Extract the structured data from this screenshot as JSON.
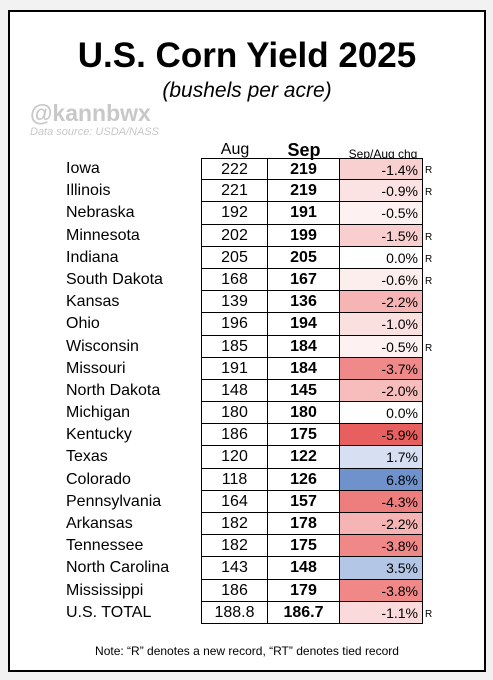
{
  "title": "U.S. Corn Yield 2025",
  "subtitle": "(bushels per acre)",
  "watermark": "@kannbwx",
  "source": "Data source: USDA/NASS",
  "headers": {
    "aug": "Aug",
    "sep": "Sep",
    "chg": "Sep/Aug chg"
  },
  "rows": [
    {
      "state": "Iowa",
      "aug": "222",
      "sep": "219",
      "chg": "-1.4%",
      "record": "R",
      "color": "#f9d0d0"
    },
    {
      "state": "Illinois",
      "aug": "221",
      "sep": "219",
      "chg": "-0.9%",
      "record": "R",
      "color": "#fbe3e3"
    },
    {
      "state": "Nebraska",
      "aug": "192",
      "sep": "191",
      "chg": "-0.5%",
      "record": "",
      "color": "#fdf1f1"
    },
    {
      "state": "Minnesota",
      "aug": "202",
      "sep": "199",
      "chg": "-1.5%",
      "record": "R",
      "color": "#f9cece"
    },
    {
      "state": "Indiana",
      "aug": "205",
      "sep": "205",
      "chg": "0.0%",
      "record": "R",
      "color": "#ffffff"
    },
    {
      "state": "South Dakota",
      "aug": "168",
      "sep": "167",
      "chg": "-0.6%",
      "record": "R",
      "color": "#fdeeee"
    },
    {
      "state": "Kansas",
      "aug": "139",
      "sep": "136",
      "chg": "-2.2%",
      "record": "",
      "color": "#f6b4b4"
    },
    {
      "state": "Ohio",
      "aug": "196",
      "sep": "194",
      "chg": "-1.0%",
      "record": "",
      "color": "#fbe0e0"
    },
    {
      "state": "Wisconsin",
      "aug": "185",
      "sep": "184",
      "chg": "-0.5%",
      "record": "R",
      "color": "#fdf1f1"
    },
    {
      "state": "Missouri",
      "aug": "191",
      "sep": "184",
      "chg": "-3.7%",
      "record": "",
      "color": "#f08a8a"
    },
    {
      "state": "North Dakota",
      "aug": "148",
      "sep": "145",
      "chg": "-2.0%",
      "record": "",
      "color": "#f7bcbc"
    },
    {
      "state": "Michigan",
      "aug": "180",
      "sep": "180",
      "chg": "0.0%",
      "record": "",
      "color": "#ffffff"
    },
    {
      "state": "Kentucky",
      "aug": "186",
      "sep": "175",
      "chg": "-5.9%",
      "record": "",
      "color": "#e85f5f"
    },
    {
      "state": "Texas",
      "aug": "120",
      "sep": "122",
      "chg": "1.7%",
      "record": "",
      "color": "#d6e0f2"
    },
    {
      "state": "Colorado",
      "aug": "118",
      "sep": "126",
      "chg": "6.8%",
      "record": "",
      "color": "#6f92cc"
    },
    {
      "state": "Pennsylvania",
      "aug": "164",
      "sep": "157",
      "chg": "-4.3%",
      "record": "",
      "color": "#ee7d7d"
    },
    {
      "state": "Arkansas",
      "aug": "182",
      "sep": "178",
      "chg": "-2.2%",
      "record": "",
      "color": "#f6b4b4"
    },
    {
      "state": "Tennessee",
      "aug": "182",
      "sep": "175",
      "chg": "-3.8%",
      "record": "",
      "color": "#f08888"
    },
    {
      "state": "North Carolina",
      "aug": "143",
      "sep": "148",
      "chg": "3.5%",
      "record": "",
      "color": "#b3c6e6"
    },
    {
      "state": "Mississippi",
      "aug": "186",
      "sep": "179",
      "chg": "-3.8%",
      "record": "",
      "color": "#f08888"
    },
    {
      "state": "U.S. TOTAL",
      "aug": "188.8",
      "sep": "186.7",
      "chg": "-1.1%",
      "record": "R",
      "color": "#fadada"
    }
  ],
  "note": "Note: “R” denotes a new record, “RT” denotes tied record"
}
